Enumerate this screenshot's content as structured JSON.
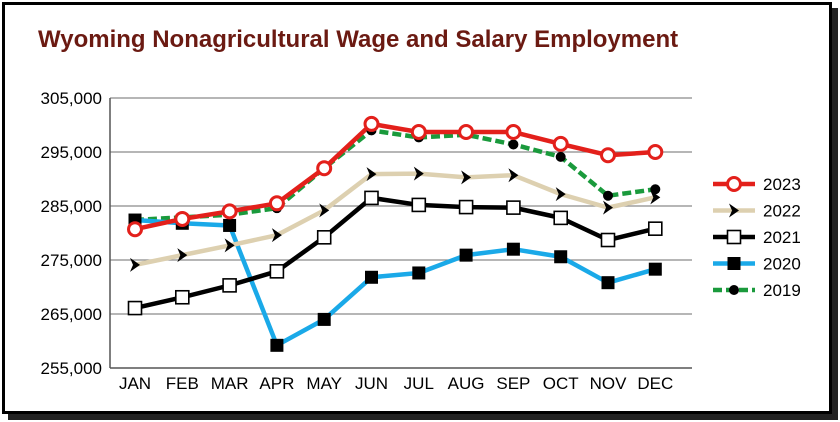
{
  "chart_data": {
    "type": "line",
    "title": "Wyoming Nonagricultural Wage and Salary Employment",
    "xlabel": "",
    "ylabel": "",
    "categories": [
      "JAN",
      "FEB",
      "MAR",
      "APR",
      "MAY",
      "JUN",
      "JUL",
      "AUG",
      "SEP",
      "OCT",
      "NOV",
      "DEC"
    ],
    "ylim": [
      255000,
      305000
    ],
    "yticks": [
      255000,
      265000,
      275000,
      285000,
      295000,
      305000
    ],
    "ytick_labels": [
      "255,000",
      "265,000",
      "275,000",
      "285,000",
      "295,000",
      "305,000"
    ],
    "grid": "horizontal",
    "legend_position": "right",
    "series": [
      {
        "name": "2023",
        "color": "#e3201b",
        "marker": "open-circle",
        "values": [
          280700,
          282600,
          284000,
          285500,
          292000,
          300200,
          298700,
          298700,
          298700,
          296500,
          294400,
          295000
        ]
      },
      {
        "name": "2022",
        "color": "#ddd0b0",
        "marker": "chevron",
        "values": [
          274100,
          275900,
          277700,
          279600,
          284200,
          290900,
          291000,
          290300,
          290700,
          287200,
          284700,
          286600
        ]
      },
      {
        "name": "2021",
        "color": "#000000",
        "marker": "open-square",
        "values": [
          266100,
          268100,
          270300,
          272900,
          279200,
          286500,
          285200,
          284800,
          284700,
          282800,
          278700,
          280800
        ]
      },
      {
        "name": "2020",
        "color": "#1aa9e8",
        "marker": "filled-square",
        "values": [
          282400,
          281800,
          281400,
          259200,
          264000,
          271800,
          272600,
          275900,
          277000,
          275600,
          270800,
          273300
        ]
      },
      {
        "name": "2019",
        "color": "#1a9a3c",
        "marker": "filled-circle",
        "dashed": true,
        "values": [
          282400,
          282900,
          283400,
          284600,
          292000,
          299000,
          297700,
          298200,
          296400,
          294100,
          286900,
          288100
        ]
      }
    ]
  }
}
